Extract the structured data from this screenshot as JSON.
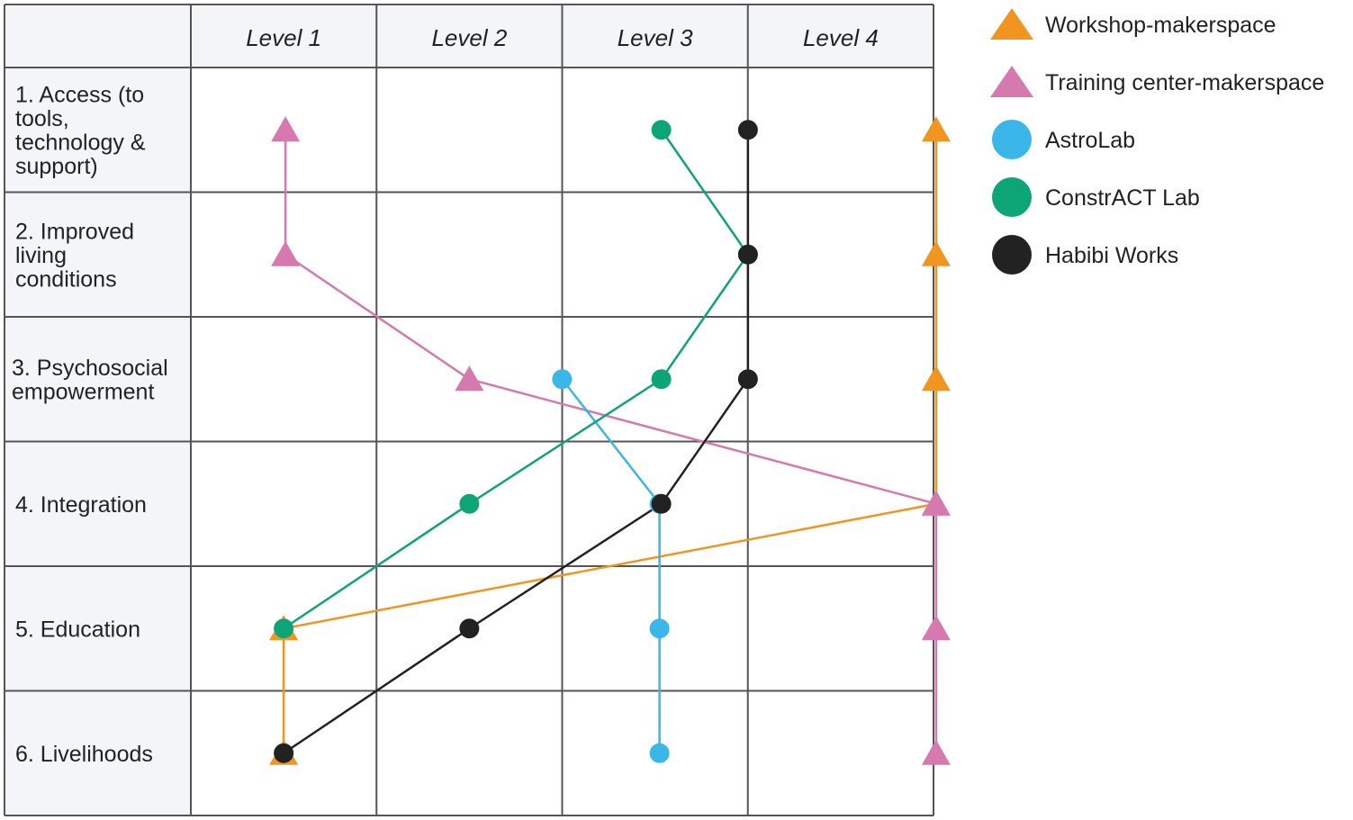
{
  "chart_data": {
    "type": "line",
    "columns": [
      "Level 1",
      "Level 2",
      "Level 3",
      "Level 4"
    ],
    "rows": [
      {
        "id": 1,
        "label": [
          "1. Access (to",
          "tools,",
          "technology &",
          "support)"
        ]
      },
      {
        "id": 2,
        "label": [
          "2. Improved",
          "living",
          "conditions"
        ]
      },
      {
        "id": 3,
        "label": [
          "3. Psychosocial",
          "empowerment"
        ]
      },
      {
        "id": 4,
        "label": [
          "4. Integration"
        ]
      },
      {
        "id": 5,
        "label": [
          "5. Education"
        ]
      },
      {
        "id": 6,
        "label": [
          "6. Livelihoods"
        ]
      }
    ],
    "series": [
      {
        "name": "Workshop-makerspace",
        "marker": "triangle",
        "color": "#f0951f",
        "values": [
          4,
          4,
          4,
          4,
          1,
          1
        ]
      },
      {
        "name": "Training center-makerspace",
        "marker": "triangle",
        "color": "#d579ae",
        "values": [
          1,
          1,
          2,
          4,
          4,
          4
        ]
      },
      {
        "name": "AstroLab",
        "marker": "circle",
        "color": "#3ab6e8",
        "values": [
          null,
          null,
          2,
          3,
          3,
          3
        ]
      },
      {
        "name": "ConstrACT Lab",
        "marker": "circle",
        "color": "#0ea576",
        "values": [
          3,
          4,
          3,
          2,
          1,
          null
        ]
      },
      {
        "name": "Habibi Works",
        "marker": "circle",
        "color": "#222222",
        "values": [
          4,
          4,
          4,
          3,
          2,
          1
        ]
      }
    ]
  }
}
